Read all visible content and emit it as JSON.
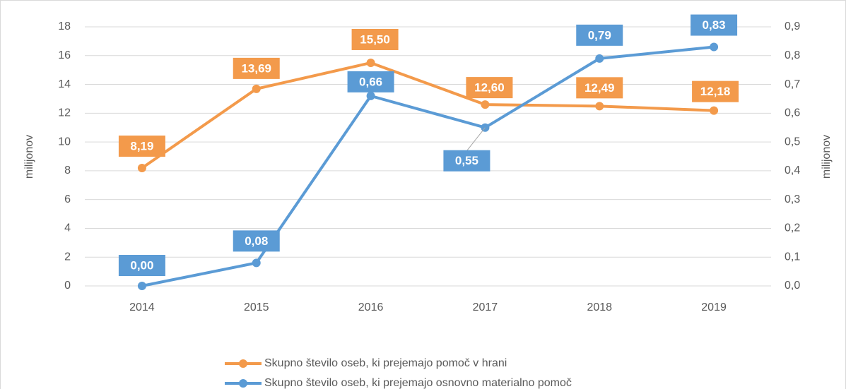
{
  "chart_data": {
    "type": "line",
    "categories": [
      "2014",
      "2015",
      "2016",
      "2017",
      "2018",
      "2019"
    ],
    "ylabel": "milijonov",
    "y2label": "milijonov",
    "ylim": [
      0,
      18
    ],
    "yticks": [
      0,
      2,
      4,
      6,
      8,
      10,
      12,
      14,
      16,
      18
    ],
    "y2lim": [
      0,
      0.9
    ],
    "y2ticks": [
      {
        "value": 0,
        "label": "0,0"
      },
      {
        "value": 0.1,
        "label": "0,1"
      },
      {
        "value": 0.2,
        "label": "0,2"
      },
      {
        "value": 0.3,
        "label": "0,3"
      },
      {
        "value": 0.4,
        "label": "0,4"
      },
      {
        "value": 0.5,
        "label": "0,5"
      },
      {
        "value": 0.6,
        "label": "0,6"
      },
      {
        "value": 0.7,
        "label": "0,7"
      },
      {
        "value": 0.8,
        "label": "0,8"
      },
      {
        "value": 0.9,
        "label": "0,9"
      }
    ],
    "grid": true,
    "series": [
      {
        "name": "Skupno število oseb, ki prejemajo pomoč v hrani",
        "color": "#f39a4b",
        "values": [
          8.19,
          13.69,
          15.5,
          12.6,
          12.49,
          12.18
        ],
        "value_labels": [
          "8,19",
          "13,69",
          "15,50",
          "12,60",
          "12,49",
          "12,18"
        ]
      },
      {
        "name": "Skupno število oseb, ki prejemajo osnovno materialno pomoč",
        "color": "#5b9bd5",
        "axis": "y2",
        "values": [
          0.0,
          0.08,
          0.66,
          0.55,
          0.79,
          0.83
        ],
        "value_labels": [
          "0,00",
          "0,08",
          "0,66",
          "0,55",
          "0,79",
          "0,83"
        ]
      }
    ]
  }
}
